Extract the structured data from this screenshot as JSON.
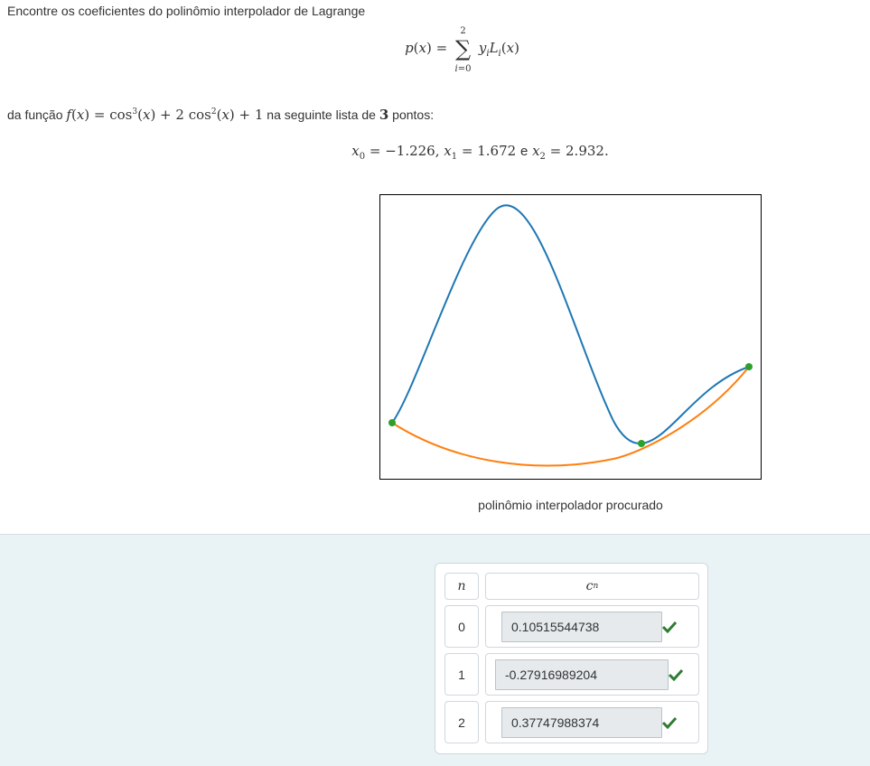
{
  "question": {
    "intro": "Encontre os coeficientes do polinômio interpolador de Lagrange",
    "formula": {
      "lhs": "p(x) =",
      "sum_sup": "2",
      "sum_sub": "i=0",
      "rhs": "yiLi(x)"
    },
    "function_text_before": "da função",
    "function_formula": "f(x) = cos³(x) + 2 cos²(x) + 1",
    "function_text_after": "na seguinte lista de",
    "num_points": "3",
    "points_word": "pontos:",
    "points": {
      "x0": "x0 = −1.226,",
      "x1": "x1 = 1.672",
      "and": "e",
      "x2": "x2 = 2.932."
    }
  },
  "plot": {
    "caption": "polinômio interpolador procurado",
    "colors": {
      "function": "#1f77b4",
      "polynomial": "#ff7f0e",
      "points": "#2ca02c"
    }
  },
  "answers": {
    "header_n": "n",
    "header_c": "cn",
    "rows": [
      {
        "n": "0",
        "value": "0.10515544738",
        "status": "correct"
      },
      {
        "n": "1",
        "value": "-0.27916989204",
        "status": "correct"
      },
      {
        "n": "2",
        "value": "0.37747988374",
        "status": "correct"
      }
    ]
  }
}
